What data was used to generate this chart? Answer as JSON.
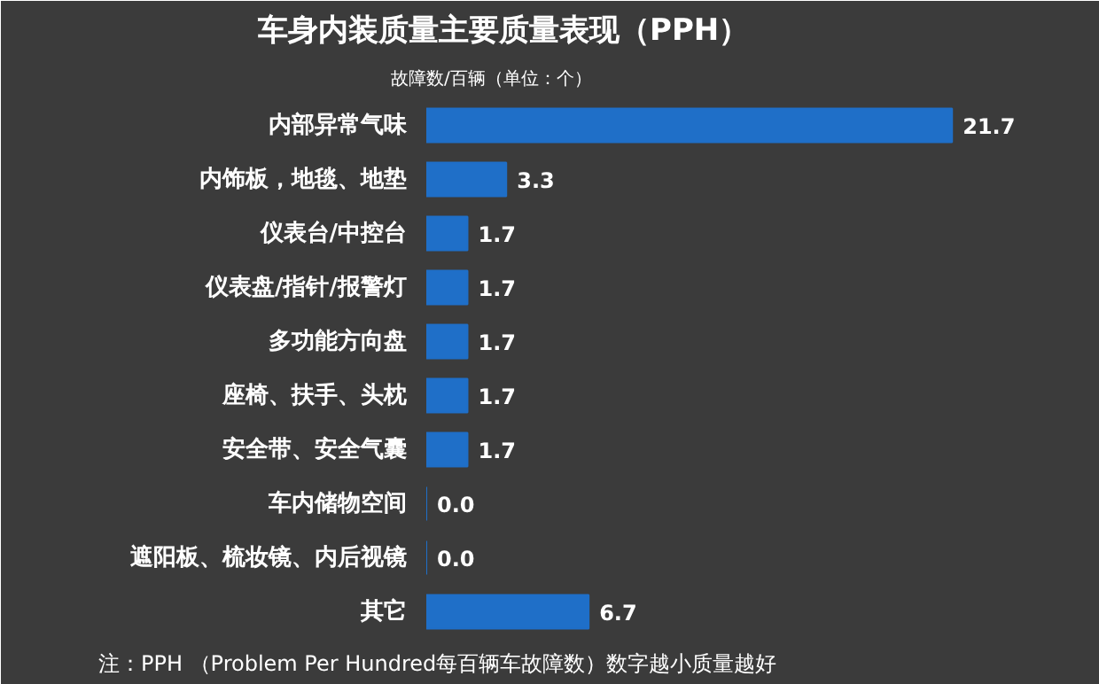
{
  "chart_data": {
    "type": "bar",
    "orientation": "horizontal",
    "title": "车身内装质量主要质量表现（PPH）",
    "subtitle": "故障数/百辆（单位：个）",
    "categories": [
      "内部异常气味",
      "内饰板，地毯、地垫",
      "仪表台/中控台",
      "仪表盘/指针/报警灯",
      "多功能方向盘",
      "座椅、扶手、头枕",
      "安全带、安全气囊",
      "车内储物空间",
      "遮阳板、梳妆镜、内后视镜",
      "其它"
    ],
    "values": [
      21.7,
      3.3,
      1.7,
      1.7,
      1.7,
      1.7,
      1.7,
      0.0,
      0.0,
      6.7
    ],
    "value_labels": [
      "21.7",
      "3.3",
      "1.7",
      "1.7",
      "1.7",
      "1.7",
      "1.7",
      "0.0",
      "0.0",
      "6.7"
    ],
    "color": "#1f6fc8",
    "grid": false,
    "annotations": [
      "注：PPH （Problem Per Hundred每百辆车故障数）数字越小质量越好"
    ]
  }
}
